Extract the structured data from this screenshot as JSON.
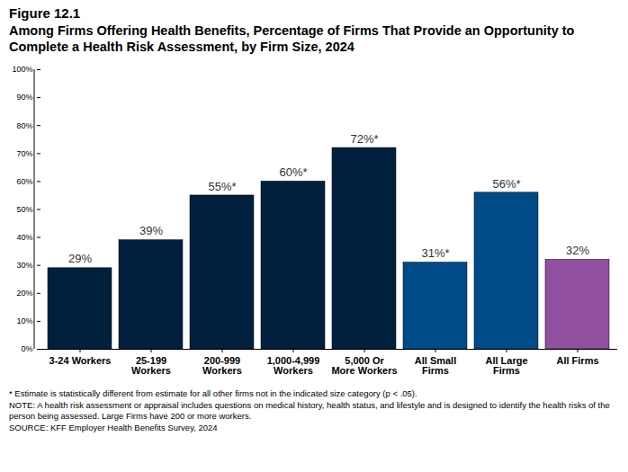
{
  "chart_data": {
    "type": "bar",
    "title": "Figure 12.1",
    "subtitle": "Among Firms Offering Health Benefits, Percentage of Firms That Provide an Opportunity to Complete a Health Risk Assessment, by Firm Size, 2024",
    "categories": [
      "3-24 Workers",
      "25-199 Workers",
      "200-999 Workers",
      "1,000-4,999 Workers",
      "5,000 Or More Workers",
      "All Small Firms",
      "All Large Firms",
      "All Firms"
    ],
    "values": [
      29,
      39,
      55,
      60,
      72,
      31,
      56,
      32
    ],
    "value_labels": [
      "29%",
      "39%",
      "55%*",
      "60%*",
      "72%*",
      "31%*",
      "56%*",
      "32%"
    ],
    "colors": [
      "#00203d",
      "#00203d",
      "#00203d",
      "#00203d",
      "#00203d",
      "#004b87",
      "#004b87",
      "#9150a0"
    ],
    "ylim": [
      0,
      100
    ],
    "yticks": [
      {
        "value": 0,
        "label": "0%"
      },
      {
        "value": 10,
        "label": "10%"
      },
      {
        "value": 20,
        "label": "20%"
      },
      {
        "value": 30,
        "label": "30%"
      },
      {
        "value": 40,
        "label": "40%"
      },
      {
        "value": 50,
        "label": "50%"
      },
      {
        "value": 60,
        "label": "60%"
      },
      {
        "value": 70,
        "label": "70%"
      },
      {
        "value": 80,
        "label": "80%"
      },
      {
        "value": 90,
        "label": "90%"
      },
      {
        "value": 100,
        "label": "100%"
      }
    ],
    "grid": false,
    "data_labels": true,
    "notes": [
      "* Estimate is statistically different from estimate for all other firms not in the indicated size category (p < .05).",
      "NOTE: A health risk assessment or appraisal includes questions on medical history, health status, and lifestyle and is designed to identify the health risks of the person being assessed.  Large Firms have 200 or more workers.",
      "SOURCE: KFF Employer Health Benefits Survey, 2024"
    ]
  }
}
